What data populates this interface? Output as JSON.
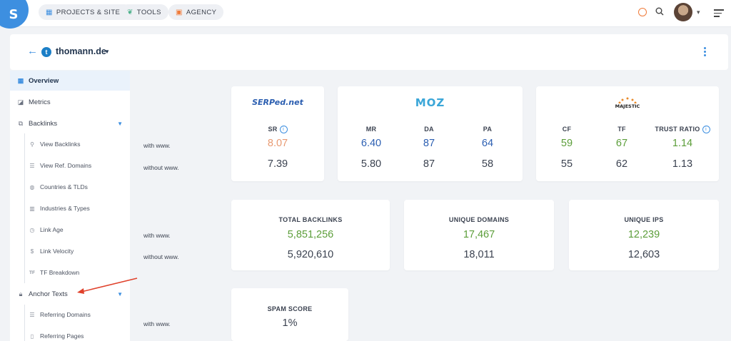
{
  "nav": {
    "logo": "S",
    "items": [
      {
        "label": "PROJECTS & SITES",
        "icon": "grid-icon"
      },
      {
        "label": "TOOLS",
        "icon": "leaf-icon"
      },
      {
        "label": "AGENCY",
        "icon": "briefcase-icon"
      }
    ]
  },
  "domain": {
    "name": "thomann.de",
    "favicon": "t"
  },
  "sidebar": {
    "items": [
      {
        "label": "Overview",
        "icon": "grid-icon"
      },
      {
        "label": "Metrics",
        "icon": "chart-icon"
      },
      {
        "label": "Backlinks",
        "icon": "link-icon"
      },
      {
        "label": "View Backlinks",
        "icon": "link-icon"
      },
      {
        "label": "View Ref. Domains",
        "icon": "list-icon"
      },
      {
        "label": "Countries & TLDs",
        "icon": "globe-icon"
      },
      {
        "label": "Industries & Types",
        "icon": "building-icon"
      },
      {
        "label": "Link Age",
        "icon": "clock-icon"
      },
      {
        "label": "Link Velocity",
        "icon": "dollar-icon"
      },
      {
        "label": "TF Breakdown",
        "icon": "tf-icon"
      },
      {
        "label": "Anchor Texts",
        "icon": "lock-icon"
      },
      {
        "label": "Referring Domains",
        "icon": "list-icon"
      },
      {
        "label": "Referring Pages",
        "icon": "page-icon"
      }
    ]
  },
  "labels": {
    "with_www": "with www.",
    "without_www": "without www."
  },
  "serped": {
    "logo": "SERPed.net",
    "metric": "SR",
    "with": "8.07",
    "without": "7.39"
  },
  "moz": {
    "logo": "MOZ",
    "metrics": [
      {
        "name": "MR",
        "with": "6.40",
        "without": "5.80"
      },
      {
        "name": "DA",
        "with": "87",
        "without": "87"
      },
      {
        "name": "PA",
        "with": "64",
        "without": "58"
      }
    ]
  },
  "majestic": {
    "logo": "MAJESTIC",
    "metrics": [
      {
        "name": "CF",
        "with": "59",
        "without": "55"
      },
      {
        "name": "TF",
        "with": "67",
        "without": "62"
      },
      {
        "name": "TRUST RATIO",
        "with": "1.14",
        "without": "1.13"
      }
    ]
  },
  "totals": [
    {
      "name": "TOTAL BACKLINKS",
      "with": "5,851,256",
      "without": "5,920,610"
    },
    {
      "name": "UNIQUE DOMAINS",
      "with": "17,467",
      "without": "18,011"
    },
    {
      "name": "UNIQUE IPS",
      "with": "12,239",
      "without": "12,603"
    }
  ],
  "spam": {
    "name": "SPAM SCORE",
    "with": "1%"
  },
  "info_glyph": "i",
  "colors": {
    "accent": "#3d8fe0",
    "green": "#5c9e3a",
    "blue": "#2c5fb2",
    "orange": "#e89a72"
  }
}
